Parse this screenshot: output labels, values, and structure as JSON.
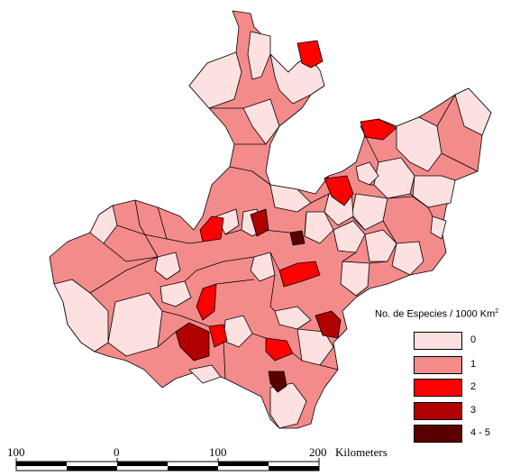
{
  "legend": {
    "title": "No. de Especies / 1000 Km",
    "title_superscript": "2",
    "classes": [
      {
        "label": "0",
        "color": "#fde0e0"
      },
      {
        "label": "1",
        "color": "#f48b8b"
      },
      {
        "label": "2",
        "color": "#ff0000"
      },
      {
        "label": "3",
        "color": "#b00000"
      },
      {
        "label": "4  -  5",
        "color": "#5a0000"
      }
    ]
  },
  "scale_bar": {
    "labels": [
      "100",
      "0",
      "100",
      "200"
    ],
    "unit": "Kilometers"
  }
}
